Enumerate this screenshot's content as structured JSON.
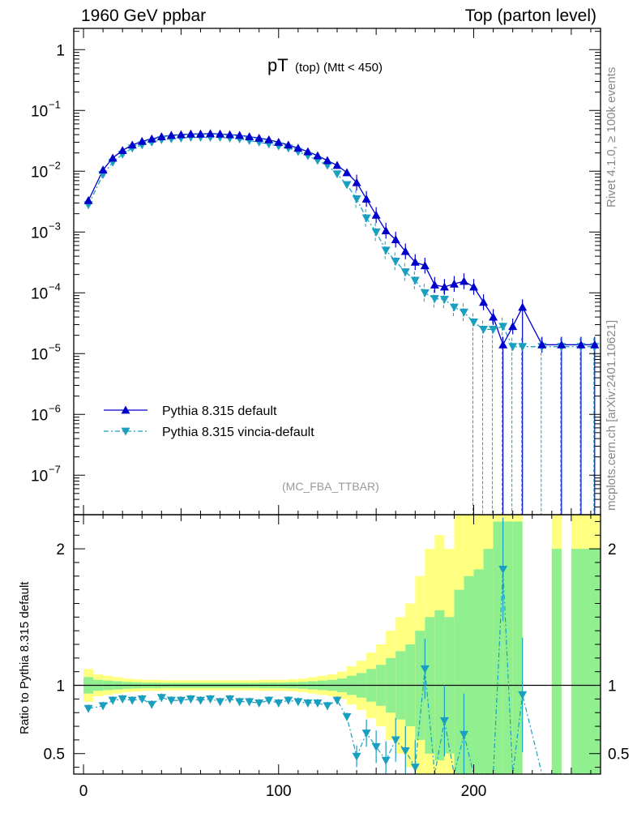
{
  "header": {
    "left": "1960 GeV ppbar",
    "right": "Top (parton level)"
  },
  "side_labels": {
    "rivet": "Rivet 4.1.0, ≥ 100k events",
    "mcplots": "mcplots.cern.ch [arXiv:2401.10621]"
  },
  "chart_data": {
    "type": "line",
    "title_main": "pT",
    "title_sub": "(top) (Mtt < 450)",
    "watermark": "(MC_FBA_TTBAR)",
    "xlabel": "",
    "ylabel_ratio": "Ratio to Pythia 8.315 default",
    "xlim": [
      -5,
      265
    ],
    "ylim_log10": [
      -7.65,
      0.35
    ],
    "ratio_ylim": [
      0.35,
      2.25
    ],
    "x_ticks": [
      "0",
      "100",
      "200"
    ],
    "y_ticks": [
      "1",
      "10",
      "10",
      "10",
      "10",
      "10",
      "10",
      "10"
    ],
    "y_tick_exponents": [
      "",
      "−1",
      "−2",
      "−3",
      "−4",
      "−5",
      "−6",
      "−7"
    ],
    "ratio_ticks": [
      "0.5",
      "1",
      "2"
    ],
    "x": [
      2.5,
      10,
      15,
      20,
      25,
      30,
      35,
      40,
      45,
      50,
      55,
      60,
      65,
      70,
      75,
      80,
      85,
      90,
      95,
      100,
      105,
      110,
      115,
      120,
      125,
      130,
      135,
      140,
      145,
      150,
      155,
      160,
      165,
      170,
      175,
      180,
      185,
      190,
      195,
      200,
      205,
      210,
      215,
      220,
      225,
      235,
      245,
      255,
      262
    ],
    "series": [
      {
        "name": "Pythia 8.315 default",
        "color": "#0000cc",
        "values": [
          0.0033,
          0.0105,
          0.0165,
          0.022,
          0.027,
          0.031,
          0.034,
          0.037,
          0.039,
          0.04,
          0.041,
          0.041,
          0.0415,
          0.041,
          0.04,
          0.039,
          0.037,
          0.035,
          0.033,
          0.03,
          0.027,
          0.024,
          0.021,
          0.018,
          0.015,
          0.0125,
          0.0095,
          0.0065,
          0.0035,
          0.0019,
          0.00105,
          0.00075,
          0.00048,
          0.00032,
          0.00028,
          0.000135,
          0.000125,
          0.00014,
          0.000155,
          0.000125,
          7e-05,
          4e-05,
          1.4e-05,
          2.8e-05,
          5.8e-05,
          1.4e-05,
          1.4e-05,
          1.4e-05,
          1.4e-05
        ]
      },
      {
        "name": "Pythia 8.315 vincia-default",
        "color": "#1a9fc0",
        "values": [
          0.0028,
          0.0088,
          0.014,
          0.019,
          0.024,
          0.027,
          0.03,
          0.033,
          0.034,
          0.035,
          0.036,
          0.036,
          0.036,
          0.036,
          0.035,
          0.034,
          0.032,
          0.03,
          0.028,
          0.026,
          0.024,
          0.021,
          0.018,
          0.015,
          0.0125,
          0.009,
          0.006,
          0.0035,
          0.0017,
          0.001,
          0.0005,
          0.00033,
          0.00022,
          0.00016,
          0.0001,
          8e-05,
          7.8e-05,
          5.8e-05,
          4.8e-05,
          3.3e-05,
          2.5e-05,
          2.5e-05,
          2.8e-05,
          1.3e-05,
          1.3e-05,
          1.3e-05,
          1.3e-05,
          1.3e-05,
          1.3e-05
        ]
      }
    ],
    "ratio": [
      0.83,
      0.85,
      0.89,
      0.9,
      0.89,
      0.9,
      0.86,
      0.91,
      0.89,
      0.89,
      0.9,
      0.89,
      0.9,
      0.88,
      0.9,
      0.88,
      0.88,
      0.87,
      0.89,
      0.87,
      0.89,
      0.88,
      0.87,
      0.87,
      0.85,
      0.89,
      0.77,
      0.48,
      0.65,
      0.55,
      0.45,
      0.6,
      0.52,
      0.4,
      1.12,
      0.35,
      0.74,
      0.35,
      0.64,
      0.35,
      0.35,
      0.35,
      1.85,
      0.35,
      0.93,
      0.35,
      0.35,
      0.35,
      0.35
    ],
    "band_edges": [
      0,
      5,
      10,
      15,
      20,
      25,
      30,
      35,
      40,
      45,
      50,
      55,
      60,
      65,
      70,
      75,
      80,
      85,
      90,
      95,
      100,
      105,
      110,
      115,
      120,
      125,
      130,
      135,
      140,
      145,
      150,
      155,
      160,
      165,
      170,
      175,
      180,
      185,
      190,
      195,
      200,
      205,
      210,
      215,
      220,
      225,
      240,
      245,
      250,
      260,
      265
    ],
    "band_green": [
      0.06,
      0.04,
      0.035,
      0.03,
      0.025,
      0.022,
      0.02,
      0.02,
      0.018,
      0.018,
      0.018,
      0.018,
      0.018,
      0.018,
      0.018,
      0.018,
      0.018,
      0.018,
      0.02,
      0.02,
      0.02,
      0.022,
      0.025,
      0.03,
      0.035,
      0.04,
      0.05,
      0.07,
      0.09,
      0.12,
      0.15,
      0.2,
      0.25,
      0.3,
      0.4,
      0.5,
      0.55,
      0.5,
      0.7,
      0.8,
      0.85,
      1.0,
      1.2,
      1.2,
      1.2,
      0,
      1.0,
      0,
      1.0,
      1.0
    ],
    "band_yellow": [
      0.12,
      0.08,
      0.07,
      0.06,
      0.05,
      0.045,
      0.04,
      0.04,
      0.037,
      0.037,
      0.037,
      0.037,
      0.037,
      0.037,
      0.037,
      0.037,
      0.037,
      0.037,
      0.04,
      0.04,
      0.04,
      0.045,
      0.05,
      0.06,
      0.07,
      0.08,
      0.1,
      0.14,
      0.18,
      0.24,
      0.3,
      0.4,
      0.5,
      0.6,
      0.8,
      1.0,
      1.1,
      1.0,
      1.4,
      1.6,
      1.7,
      2.0,
      2.4,
      2.4,
      2.4,
      0,
      2.0,
      0,
      2.0,
      2.0
    ]
  }
}
